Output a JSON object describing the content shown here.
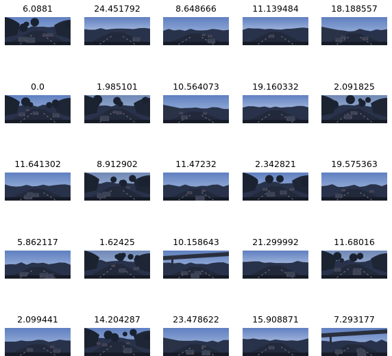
{
  "grid": {
    "rows": 5,
    "cols": 5,
    "items": [
      {
        "label": "6.0881",
        "scene": "street-cars"
      },
      {
        "label": "24.451792",
        "scene": "highway-sky"
      },
      {
        "label": "8.648666",
        "scene": "highway-traffic"
      },
      {
        "label": "11.139484",
        "scene": "highway-sky"
      },
      {
        "label": "18.188557",
        "scene": "road-wall"
      },
      {
        "label": "0.0",
        "scene": "street-cars"
      },
      {
        "label": "1.985101",
        "scene": "street-trees"
      },
      {
        "label": "10.564073",
        "scene": "road-wall"
      },
      {
        "label": "19.160332",
        "scene": "highway-sky"
      },
      {
        "label": "2.091825",
        "scene": "street-trees"
      },
      {
        "label": "11.641302",
        "scene": "highway-traffic"
      },
      {
        "label": "8.912902",
        "scene": "street-trees"
      },
      {
        "label": "11.47232",
        "scene": "highway-traffic"
      },
      {
        "label": "2.342821",
        "scene": "street-cars"
      },
      {
        "label": "19.575363",
        "scene": "highway-traffic"
      },
      {
        "label": "5.862117",
        "scene": "highway-traffic"
      },
      {
        "label": "1.62425",
        "scene": "street-trees"
      },
      {
        "label": "10.158643",
        "scene": "overpass"
      },
      {
        "label": "21.299992",
        "scene": "highway-sky"
      },
      {
        "label": "11.68016",
        "scene": "street-trees"
      },
      {
        "label": "2.099441",
        "scene": "highway-traffic"
      },
      {
        "label": "14.204287",
        "scene": "street-cars"
      },
      {
        "label": "23.478622",
        "scene": "road-wall"
      },
      {
        "label": "15.908871",
        "scene": "highway-sky"
      },
      {
        "label": "7.293177",
        "scene": "overpass"
      }
    ]
  }
}
